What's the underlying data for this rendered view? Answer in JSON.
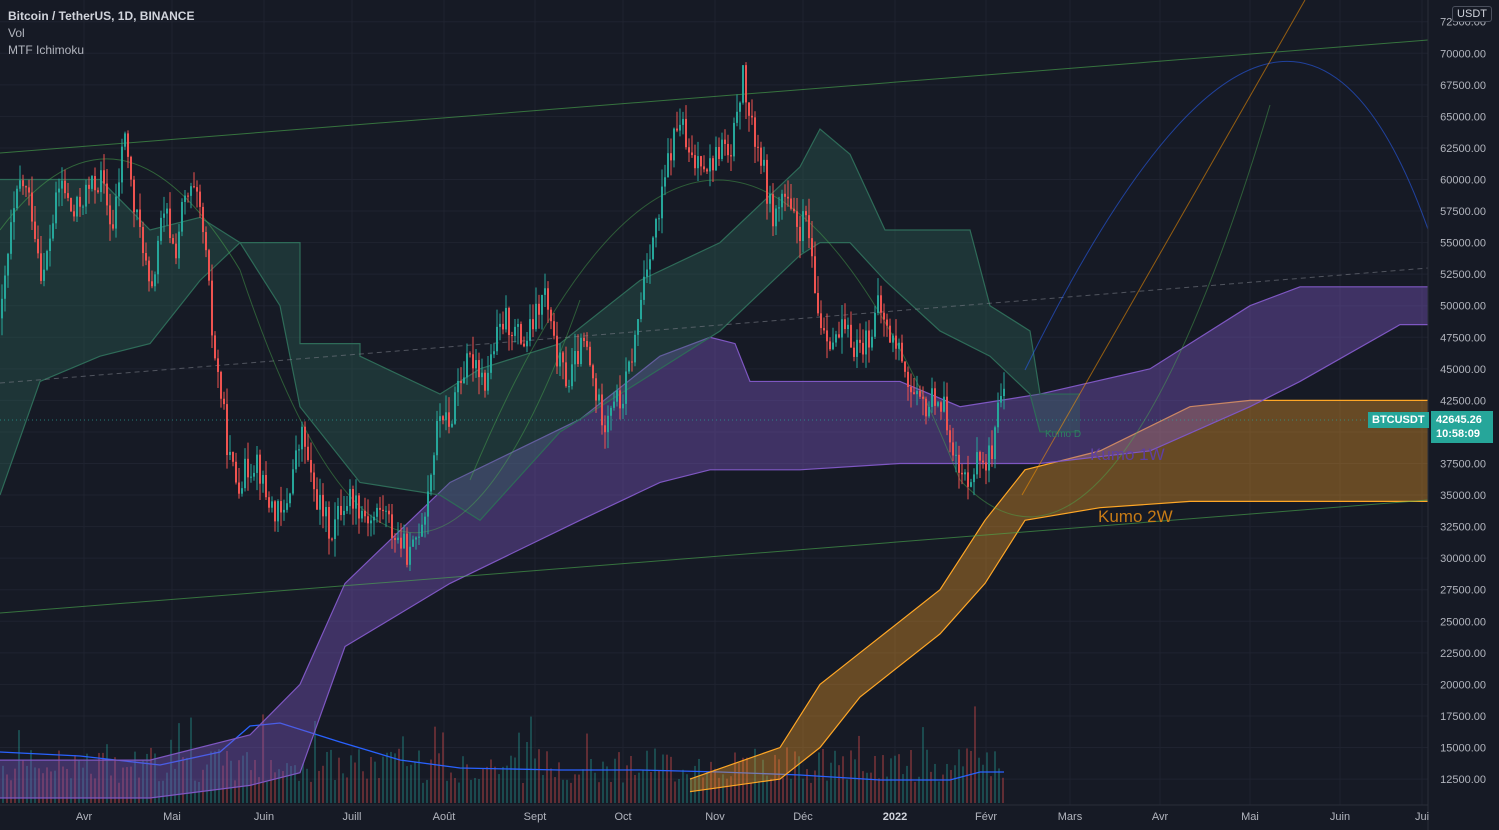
{
  "header": {
    "symbol_line": "Bitcoin / TetherUS, 1D, BINANCE",
    "indicator_1": "Vol",
    "indicator_2": "MTF Ichimoku"
  },
  "price_axis": {
    "unit": "USDT",
    "current_symbol": "BTCUSDT",
    "current_price": "42645.26",
    "countdown": "10:58:09"
  },
  "colors": {
    "background": "#161a25",
    "up": "#26a69a",
    "down": "#ef5350",
    "kumo_d": "#2e6b58",
    "kumo_1w": "#7e57c2",
    "kumo_2w": "#ffa726",
    "volume_ma": "#2962ff"
  },
  "chart_data": {
    "type": "candlestick",
    "ylim": [
      11000,
      75000
    ],
    "y_ticks": [
      "12500.00",
      "15000.00",
      "17500.00",
      "20000.00",
      "22500.00",
      "25000.00",
      "27500.00",
      "30000.00",
      "32500.00",
      "35000.00",
      "37500.00",
      "40000.00",
      "42500.00",
      "45000.00",
      "47500.00",
      "50000.00",
      "52500.00",
      "55000.00",
      "57500.00",
      "60000.00",
      "62500.00",
      "65000.00",
      "67500.00",
      "70000.00",
      "72500.00"
    ],
    "x_ticks": [
      "Avr",
      "Mai",
      "Juin",
      "Juill",
      "Août",
      "Sept",
      "Oct",
      "Nov",
      "Déc",
      "2022",
      "Févr",
      "Mars",
      "Avr",
      "Mai",
      "Juin",
      "Jui"
    ],
    "annotations": [
      "Kumo D",
      "Kumo 1W",
      "Kumo 2W"
    ],
    "price_path": [
      [
        0,
        49000
      ],
      [
        10,
        56000
      ],
      [
        20,
        60000
      ],
      [
        30,
        58000
      ],
      [
        42,
        52000
      ],
      [
        50,
        56000
      ],
      [
        60,
        60000
      ],
      [
        72,
        57000
      ],
      [
        85,
        59000
      ],
      [
        100,
        60000
      ],
      [
        112,
        56000
      ],
      [
        118,
        60000
      ],
      [
        124,
        64000
      ],
      [
        132,
        58000
      ],
      [
        142,
        55000
      ],
      [
        150,
        50000
      ],
      [
        158,
        56000
      ],
      [
        166,
        57000
      ],
      [
        174,
        54000
      ],
      [
        182,
        58000
      ],
      [
        192,
        59000
      ],
      [
        200,
        57000
      ],
      [
        206,
        53000
      ],
      [
        212,
        47000
      ],
      [
        220,
        43000
      ],
      [
        228,
        38000
      ],
      [
        236,
        36000
      ],
      [
        246,
        37000
      ],
      [
        256,
        38000
      ],
      [
        264,
        35000
      ],
      [
        272,
        34000
      ],
      [
        282,
        33000
      ],
      [
        292,
        37000
      ],
      [
        302,
        40000
      ],
      [
        310,
        36000
      ],
      [
        320,
        34000
      ],
      [
        330,
        32000
      ],
      [
        340,
        34000
      ],
      [
        350,
        35000
      ],
      [
        360,
        34000
      ],
      [
        370,
        33000
      ],
      [
        382,
        34000
      ],
      [
        392,
        32000
      ],
      [
        402,
        31000
      ],
      [
        410,
        30000
      ],
      [
        416,
        32000
      ],
      [
        424,
        34000
      ],
      [
        432,
        38000
      ],
      [
        440,
        42000
      ],
      [
        448,
        40000
      ],
      [
        456,
        44000
      ],
      [
        464,
        45000
      ],
      [
        474,
        46000
      ],
      [
        484,
        44000
      ],
      [
        494,
        47000
      ],
      [
        504,
        49000
      ],
      [
        514,
        48000
      ],
      [
        524,
        47000
      ],
      [
        534,
        49000
      ],
      [
        544,
        51000
      ],
      [
        552,
        47000
      ],
      [
        560,
        45000
      ],
      [
        568,
        44000
      ],
      [
        576,
        46000
      ],
      [
        584,
        47000
      ],
      [
        592,
        44000
      ],
      [
        598,
        42000
      ],
      [
        604,
        41000
      ],
      [
        612,
        43000
      ],
      [
        620,
        42000
      ],
      [
        628,
        45000
      ],
      [
        636,
        48000
      ],
      [
        642,
        52000
      ],
      [
        650,
        55000
      ],
      [
        658,
        57000
      ],
      [
        666,
        61000
      ],
      [
        672,
        63000
      ],
      [
        680,
        65000
      ],
      [
        686,
        62000
      ],
      [
        692,
        61000
      ],
      [
        700,
        62000
      ],
      [
        708,
        61000
      ],
      [
        716,
        62000
      ],
      [
        722,
        63000
      ],
      [
        730,
        61000
      ],
      [
        736,
        66000
      ],
      [
        742,
        68000
      ],
      [
        750,
        64000
      ],
      [
        756,
        63000
      ],
      [
        762,
        61000
      ],
      [
        768,
        58000
      ],
      [
        774,
        57000
      ],
      [
        782,
        59000
      ],
      [
        790,
        57000
      ],
      [
        798,
        56000
      ],
      [
        806,
        57000
      ],
      [
        812,
        52000
      ],
      [
        818,
        49000
      ],
      [
        826,
        48000
      ],
      [
        834,
        47000
      ],
      [
        842,
        48000
      ],
      [
        852,
        47000
      ],
      [
        862,
        47000
      ],
      [
        870,
        48000
      ],
      [
        878,
        50000
      ],
      [
        886,
        48000
      ],
      [
        894,
        47000
      ],
      [
        902,
        46000
      ],
      [
        910,
        43000
      ],
      [
        918,
        42000
      ],
      [
        926,
        42000
      ],
      [
        934,
        43000
      ],
      [
        942,
        42000
      ],
      [
        950,
        40000
      ],
      [
        956,
        37000
      ],
      [
        962,
        36000
      ],
      [
        970,
        37000
      ],
      [
        978,
        38000
      ],
      [
        986,
        38000
      ],
      [
        992,
        38000
      ],
      [
        998,
        42000
      ],
      [
        1004,
        42645
      ]
    ],
    "kumo_d": {
      "upper": [
        [
          0,
          60000
        ],
        [
          100,
          60000
        ],
        [
          150,
          56000
        ],
        [
          200,
          57000
        ],
        [
          240,
          55000
        ],
        [
          300,
          55000
        ],
        [
          300,
          47000
        ],
        [
          360,
          47000
        ],
        [
          360,
          46000
        ],
        [
          440,
          43000
        ],
        [
          480,
          45000
        ],
        [
          560,
          47000
        ],
        [
          640,
          52000
        ],
        [
          720,
          55000
        ],
        [
          760,
          58000
        ],
        [
          800,
          61000
        ],
        [
          820,
          64000
        ],
        [
          850,
          62000
        ],
        [
          885,
          56000
        ],
        [
          970,
          56000
        ],
        [
          990,
          50000
        ],
        [
          1030,
          48000
        ],
        [
          1040,
          43000
        ],
        [
          1080,
          43000
        ]
      ],
      "lower": [
        [
          0,
          35000
        ],
        [
          40,
          44000
        ],
        [
          100,
          46000
        ],
        [
          150,
          47000
        ],
        [
          200,
          52000
        ],
        [
          240,
          55000
        ],
        [
          280,
          50000
        ],
        [
          300,
          42000
        ],
        [
          360,
          36000
        ],
        [
          440,
          35000
        ],
        [
          480,
          33000
        ],
        [
          560,
          40000
        ],
        [
          640,
          44000
        ],
        [
          720,
          48000
        ],
        [
          760,
          51000
        ],
        [
          800,
          54000
        ],
        [
          820,
          55000
        ],
        [
          850,
          55000
        ],
        [
          885,
          52000
        ],
        [
          940,
          48000
        ],
        [
          990,
          46000
        ],
        [
          1030,
          43000
        ],
        [
          1040,
          40000
        ],
        [
          1080,
          40000
        ]
      ]
    },
    "kumo_1w": {
      "upper": [
        [
          0,
          14000
        ],
        [
          150,
          14000
        ],
        [
          250,
          16000
        ],
        [
          300,
          20000
        ],
        [
          345,
          28000
        ],
        [
          450,
          36000
        ],
        [
          580,
          41000
        ],
        [
          660,
          46000
        ],
        [
          710,
          47500
        ],
        [
          735,
          47000
        ],
        [
          750,
          44000
        ],
        [
          800,
          44000
        ],
        [
          900,
          44000
        ],
        [
          960,
          42000
        ],
        [
          1040,
          43000
        ],
        [
          1150,
          45000
        ],
        [
          1250,
          50000
        ],
        [
          1300,
          51500
        ],
        [
          1428,
          51500
        ]
      ],
      "lower": [
        [
          0,
          11000
        ],
        [
          150,
          11000
        ],
        [
          250,
          12000
        ],
        [
          300,
          13000
        ],
        [
          345,
          23000
        ],
        [
          450,
          28000
        ],
        [
          580,
          33000
        ],
        [
          660,
          36000
        ],
        [
          710,
          37000
        ],
        [
          800,
          37000
        ],
        [
          900,
          37500
        ],
        [
          1040,
          37500
        ],
        [
          1150,
          38500
        ],
        [
          1250,
          42000
        ],
        [
          1300,
          44000
        ],
        [
          1400,
          48500
        ],
        [
          1428,
          48500
        ]
      ]
    },
    "kumo_2w": {
      "upper": [
        [
          690,
          12500
        ],
        [
          780,
          15000
        ],
        [
          820,
          20000
        ],
        [
          860,
          22500
        ],
        [
          940,
          27500
        ],
        [
          985,
          33000
        ],
        [
          1025,
          37000
        ],
        [
          1100,
          38500
        ],
        [
          1190,
          42000
        ],
        [
          1250,
          42500
        ],
        [
          1428,
          42500
        ]
      ],
      "lower": [
        [
          690,
          11500
        ],
        [
          780,
          12500
        ],
        [
          820,
          15000
        ],
        [
          860,
          19000
        ],
        [
          940,
          24000
        ],
        [
          985,
          28000
        ],
        [
          1025,
          33000
        ],
        [
          1100,
          34000
        ],
        [
          1190,
          34500
        ],
        [
          1428,
          34500
        ]
      ]
    }
  }
}
